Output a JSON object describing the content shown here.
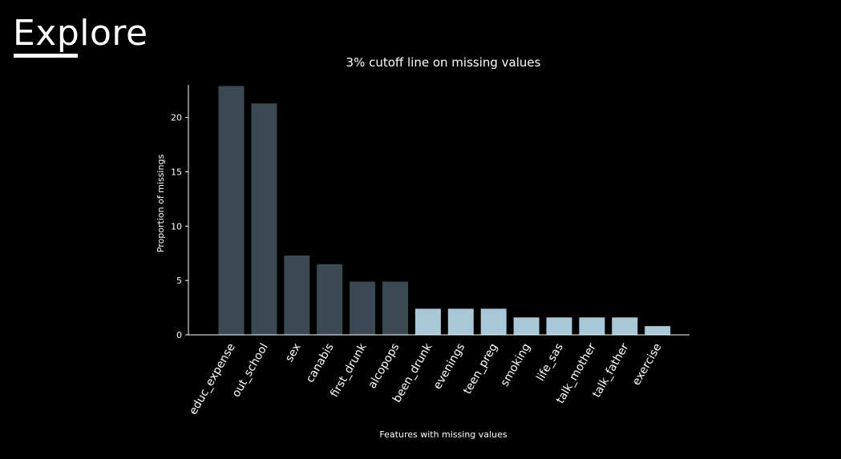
{
  "slide": {
    "title": "Explore"
  },
  "colors": {
    "background": "#000000",
    "above_cutoff": "#3b4a52",
    "below_cutoff": "#a8c8d8",
    "axis": "#ffffff",
    "text": "#ffffff"
  },
  "chart_data": {
    "type": "bar",
    "title": "3% cutoff line on missing values",
    "xlabel": "Features with missing values",
    "ylabel": "Proportion of missings",
    "ylim": [
      0,
      23
    ],
    "yticks": [
      0,
      5,
      10,
      15,
      20
    ],
    "grid": false,
    "categories": [
      "educ_expense",
      "out_school",
      "sex",
      "canabis",
      "first_drunk",
      "alcopops",
      "been_drunk",
      "evenings",
      "teen_preg",
      "smoking",
      "life_sas",
      "talk_mother",
      "talk_father",
      "exercise"
    ],
    "values": [
      22.9,
      21.3,
      7.3,
      6.5,
      4.9,
      4.9,
      2.4,
      2.4,
      2.4,
      1.6,
      1.6,
      1.6,
      1.6,
      0.8
    ],
    "cutoff": 3
  }
}
